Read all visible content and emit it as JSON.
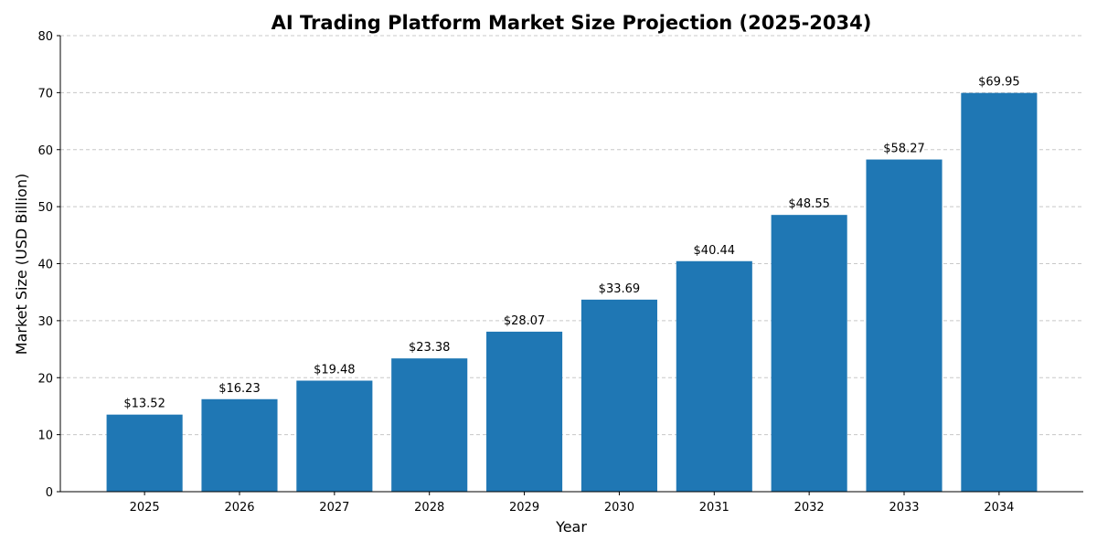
{
  "chart_data": {
    "type": "bar",
    "title": "AI Trading Platform Market Size Projection (2025-2034)",
    "xlabel": "Year",
    "ylabel": "Market Size (USD Billion)",
    "categories": [
      "2025",
      "2026",
      "2027",
      "2028",
      "2029",
      "2030",
      "2031",
      "2032",
      "2033",
      "2034"
    ],
    "values": [
      13.52,
      16.23,
      19.48,
      23.38,
      28.07,
      33.69,
      40.44,
      48.55,
      58.27,
      69.95
    ],
    "data_labels": [
      "$13.52",
      "$16.23",
      "$19.48",
      "$23.38",
      "$28.07",
      "$33.69",
      "$40.44",
      "$48.55",
      "$58.27",
      "$69.95"
    ],
    "ylim": [
      0,
      80
    ],
    "yticks": [
      0,
      10,
      20,
      30,
      40,
      50,
      60,
      70,
      80
    ],
    "grid": "y-dashed",
    "bar_color": "#1f77b4",
    "legend": "none"
  }
}
